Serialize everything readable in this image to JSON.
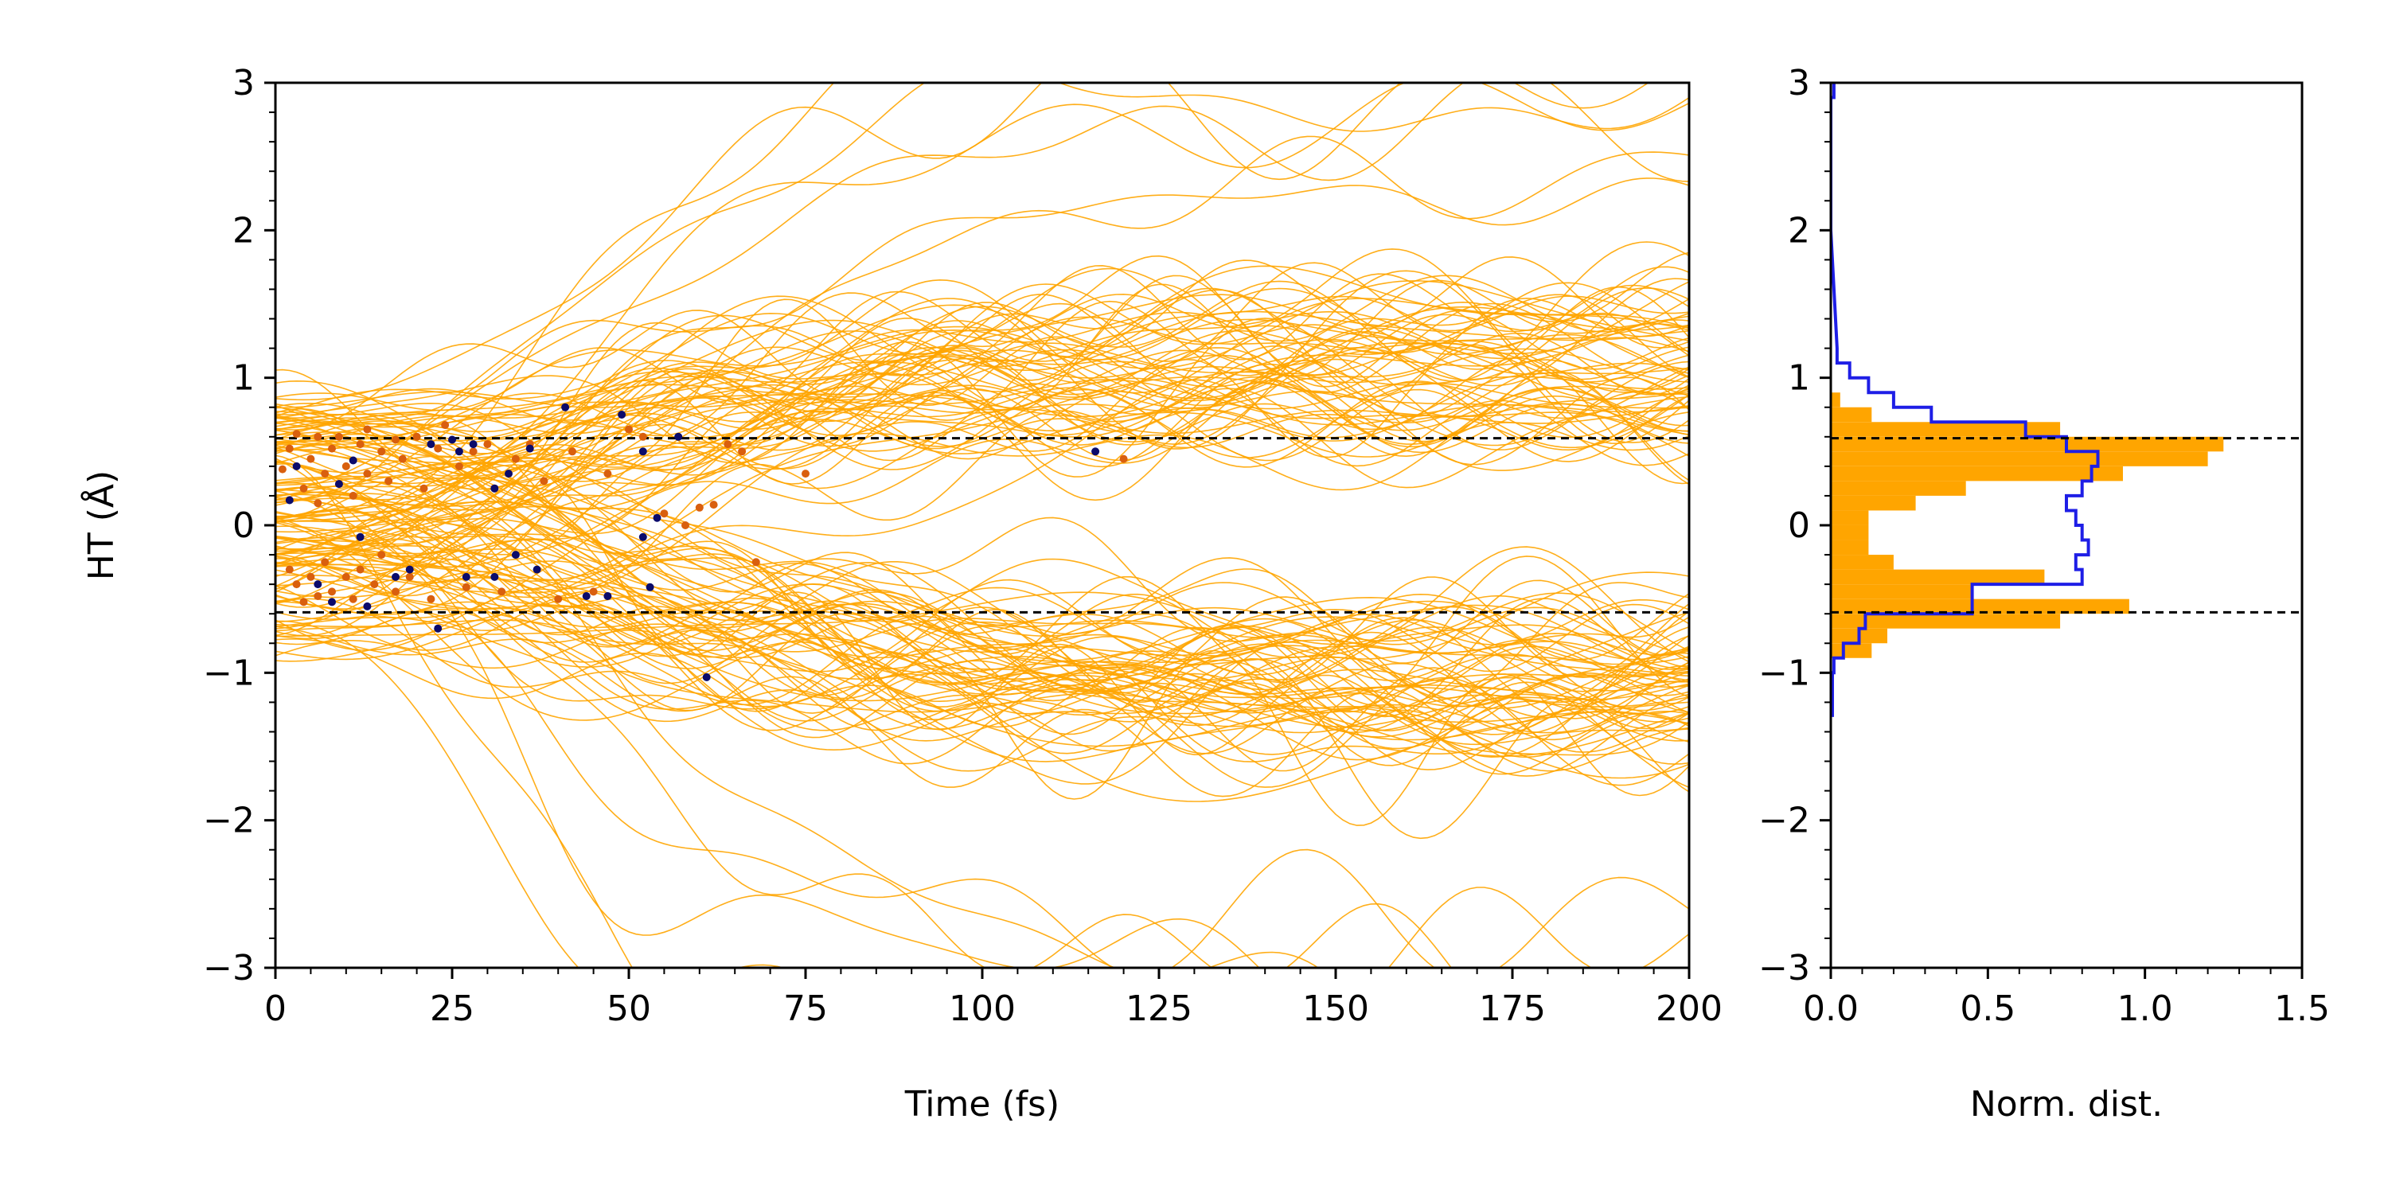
{
  "chart_data": [
    {
      "type": "line",
      "xlabel": "Time (fs)",
      "ylabel": "HT (Å)",
      "xlim": [
        0,
        200
      ],
      "ylim": [
        -3,
        3
      ],
      "xticks": [
        0,
        25,
        50,
        75,
        100,
        125,
        150,
        175,
        200
      ],
      "yticks": [
        -3,
        -2,
        -1,
        0,
        1,
        2,
        3
      ],
      "xtick_labels": [
        "0",
        "25",
        "50",
        "75",
        "100",
        "125",
        "150",
        "175",
        "200"
      ],
      "ytick_labels": [
        "−3",
        "−2",
        "−1",
        "0",
        "1",
        "2",
        "3"
      ],
      "reference_lines": [
        0.59,
        -0.59
      ],
      "trajectory_color": "#FFA500",
      "trajectory_count_approx": 150,
      "trajectory_summary": {
        "start_range": [
          -0.9,
          0.9
        ],
        "upper_band_center_after_75fs": 1.05,
        "lower_band_center_after_75fs": -1.05,
        "band_half_width": 0.45
      },
      "event_markers": {
        "orange": {
          "color": "#D95F0E",
          "points": [
            [
              1,
              0.38
            ],
            [
              2,
              0.52
            ],
            [
              2,
              -0.3
            ],
            [
              3,
              0.62
            ],
            [
              3,
              -0.4
            ],
            [
              4,
              0.25
            ],
            [
              4,
              -0.52
            ],
            [
              5,
              0.45
            ],
            [
              5,
              -0.35
            ],
            [
              6,
              0.6
            ],
            [
              6,
              0.15
            ],
            [
              6,
              -0.48
            ],
            [
              7,
              0.35
            ],
            [
              7,
              -0.25
            ],
            [
              8,
              0.52
            ],
            [
              8,
              -0.45
            ],
            [
              9,
              0.6
            ],
            [
              9,
              0.28
            ],
            [
              10,
              -0.35
            ],
            [
              10,
              0.4
            ],
            [
              11,
              0.2
            ],
            [
              11,
              -0.5
            ],
            [
              12,
              0.55
            ],
            [
              12,
              -0.3
            ],
            [
              13,
              0.65
            ],
            [
              13,
              0.35
            ],
            [
              14,
              -0.4
            ],
            [
              15,
              0.5
            ],
            [
              15,
              -0.2
            ],
            [
              16,
              0.3
            ],
            [
              17,
              0.58
            ],
            [
              17,
              -0.45
            ],
            [
              18,
              0.45
            ],
            [
              19,
              -0.35
            ],
            [
              20,
              0.6
            ],
            [
              21,
              0.25
            ],
            [
              22,
              -0.5
            ],
            [
              23,
              0.52
            ],
            [
              24,
              0.68
            ],
            [
              26,
              0.4
            ],
            [
              27,
              -0.42
            ],
            [
              28,
              0.5
            ],
            [
              30,
              0.55
            ],
            [
              31,
              0.25
            ],
            [
              32,
              -0.45
            ],
            [
              34,
              0.45
            ],
            [
              36,
              0.55
            ],
            [
              38,
              0.3
            ],
            [
              40,
              -0.5
            ],
            [
              42,
              0.5
            ],
            [
              45,
              -0.45
            ],
            [
              47,
              0.35
            ],
            [
              50,
              0.65
            ],
            [
              52,
              0.6
            ],
            [
              55,
              0.08
            ],
            [
              58,
              0.0
            ],
            [
              60,
              0.12
            ],
            [
              62,
              0.14
            ],
            [
              64,
              0.55
            ],
            [
              66,
              0.5
            ],
            [
              68,
              -0.25
            ],
            [
              75,
              0.35
            ],
            [
              120,
              0.45
            ]
          ]
        },
        "navy": {
          "color": "#0B0B6B",
          "points": [
            [
              2,
              0.17
            ],
            [
              3,
              0.4
            ],
            [
              6,
              -0.4
            ],
            [
              8,
              -0.52
            ],
            [
              9,
              0.28
            ],
            [
              11,
              0.44
            ],
            [
              12,
              -0.08
            ],
            [
              13,
              -0.55
            ],
            [
              17,
              -0.35
            ],
            [
              19,
              -0.3
            ],
            [
              22,
              0.55
            ],
            [
              23,
              -0.7
            ],
            [
              25,
              0.58
            ],
            [
              26,
              0.5
            ],
            [
              27,
              -0.35
            ],
            [
              28,
              0.55
            ],
            [
              31,
              0.25
            ],
            [
              31,
              -0.35
            ],
            [
              33,
              0.35
            ],
            [
              34,
              -0.2
            ],
            [
              36,
              0.52
            ],
            [
              37,
              -0.3
            ],
            [
              41,
              0.8
            ],
            [
              44,
              -0.48
            ],
            [
              47,
              -0.48
            ],
            [
              49,
              0.75
            ],
            [
              52,
              0.5
            ],
            [
              52,
              -0.08
            ],
            [
              53,
              -0.42
            ],
            [
              54,
              0.05
            ],
            [
              57,
              0.6
            ],
            [
              61,
              -1.03
            ],
            [
              116,
              0.5
            ]
          ]
        }
      }
    },
    {
      "type": "histogram",
      "orientation": "horizontal",
      "xlabel": "Norm. dist.",
      "ylabel": "",
      "xlim": [
        0,
        1.5
      ],
      "ylim": [
        -3,
        3
      ],
      "xticks": [
        0,
        0.5,
        1,
        1.5
      ],
      "yticks": [
        -3,
        -2,
        -1,
        0,
        1,
        2,
        3
      ],
      "xtick_labels": [
        "0.0",
        "0.5",
        "1.0",
        "1.5"
      ],
      "ytick_labels": [
        "−3",
        "−2",
        "−1",
        "0",
        "1",
        "2",
        "3"
      ],
      "reference_lines": [
        0.59,
        -0.59
      ],
      "bin_width": 0.1,
      "series": [
        {
          "style": "filled",
          "color": "#FFA500",
          "bins": [
            [
              0.8,
              0.9,
              0.03
            ],
            [
              0.7,
              0.8,
              0.13
            ],
            [
              0.6,
              0.7,
              0.73
            ],
            [
              0.5,
              0.6,
              1.25
            ],
            [
              0.4,
              0.5,
              1.2
            ],
            [
              0.3,
              0.4,
              0.93
            ],
            [
              0.2,
              0.3,
              0.43
            ],
            [
              0.1,
              0.2,
              0.27
            ],
            [
              0.0,
              0.1,
              0.12
            ],
            [
              -0.1,
              0.0,
              0.12
            ],
            [
              -0.2,
              -0.1,
              0.12
            ],
            [
              -0.3,
              -0.2,
              0.2
            ],
            [
              -0.4,
              -0.3,
              0.68
            ],
            [
              -0.5,
              -0.4,
              0.45
            ],
            [
              -0.6,
              -0.5,
              0.95
            ],
            [
              -0.7,
              -0.6,
              0.73
            ],
            [
              -0.8,
              -0.7,
              0.18
            ],
            [
              -0.9,
              -0.8,
              0.13
            ]
          ]
        },
        {
          "style": "step",
          "color": "#1E1EE6",
          "bins": [
            [
              2.9,
              3.0,
              0.01
            ],
            [
              2.0,
              2.9,
              0.0
            ],
            [
              1.1,
              1.2,
              0.02
            ],
            [
              1.0,
              1.1,
              0.06
            ],
            [
              0.9,
              1.0,
              0.12
            ],
            [
              0.8,
              0.9,
              0.2
            ],
            [
              0.7,
              0.8,
              0.32
            ],
            [
              0.6,
              0.7,
              0.62
            ],
            [
              0.5,
              0.6,
              0.75
            ],
            [
              0.4,
              0.5,
              0.85
            ],
            [
              0.3,
              0.4,
              0.83
            ],
            [
              0.2,
              0.3,
              0.8
            ],
            [
              0.1,
              0.2,
              0.75
            ],
            [
              0.0,
              0.1,
              0.78
            ],
            [
              -0.1,
              0.0,
              0.8
            ],
            [
              -0.2,
              -0.1,
              0.82
            ],
            [
              -0.3,
              -0.2,
              0.78
            ],
            [
              -0.4,
              -0.3,
              0.8
            ],
            [
              -0.5,
              -0.4,
              0.45
            ],
            [
              -0.6,
              -0.5,
              0.45
            ],
            [
              -0.7,
              -0.6,
              0.11
            ],
            [
              -0.8,
              -0.7,
              0.09
            ],
            [
              -0.9,
              -0.8,
              0.04
            ],
            [
              -1.0,
              -0.9,
              0.01
            ],
            [
              -1.3,
              -1.0,
              0.005
            ]
          ]
        }
      ]
    }
  ]
}
